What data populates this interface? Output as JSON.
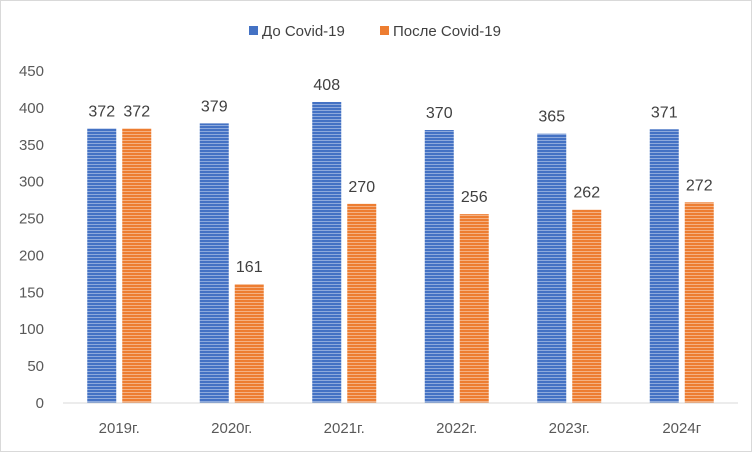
{
  "chart_data": {
    "type": "bar",
    "categories": [
      "2019г.",
      "2020г.",
      "2021г.",
      "2022г.",
      "2023г.",
      "2024г"
    ],
    "series": [
      {
        "name": "До Covid-19",
        "color": "#4472c4",
        "values": [
          372,
          379,
          408,
          370,
          365,
          371
        ]
      },
      {
        "name": "После Covid-19",
        "color": "#ed7d31",
        "values": [
          372,
          161,
          270,
          256,
          262,
          272
        ]
      }
    ],
    "yticks": [
      0,
      50,
      100,
      150,
      200,
      250,
      300,
      350,
      400,
      450
    ],
    "ylim": [
      0,
      450
    ],
    "legend_position": "top-center",
    "grid": false
  }
}
